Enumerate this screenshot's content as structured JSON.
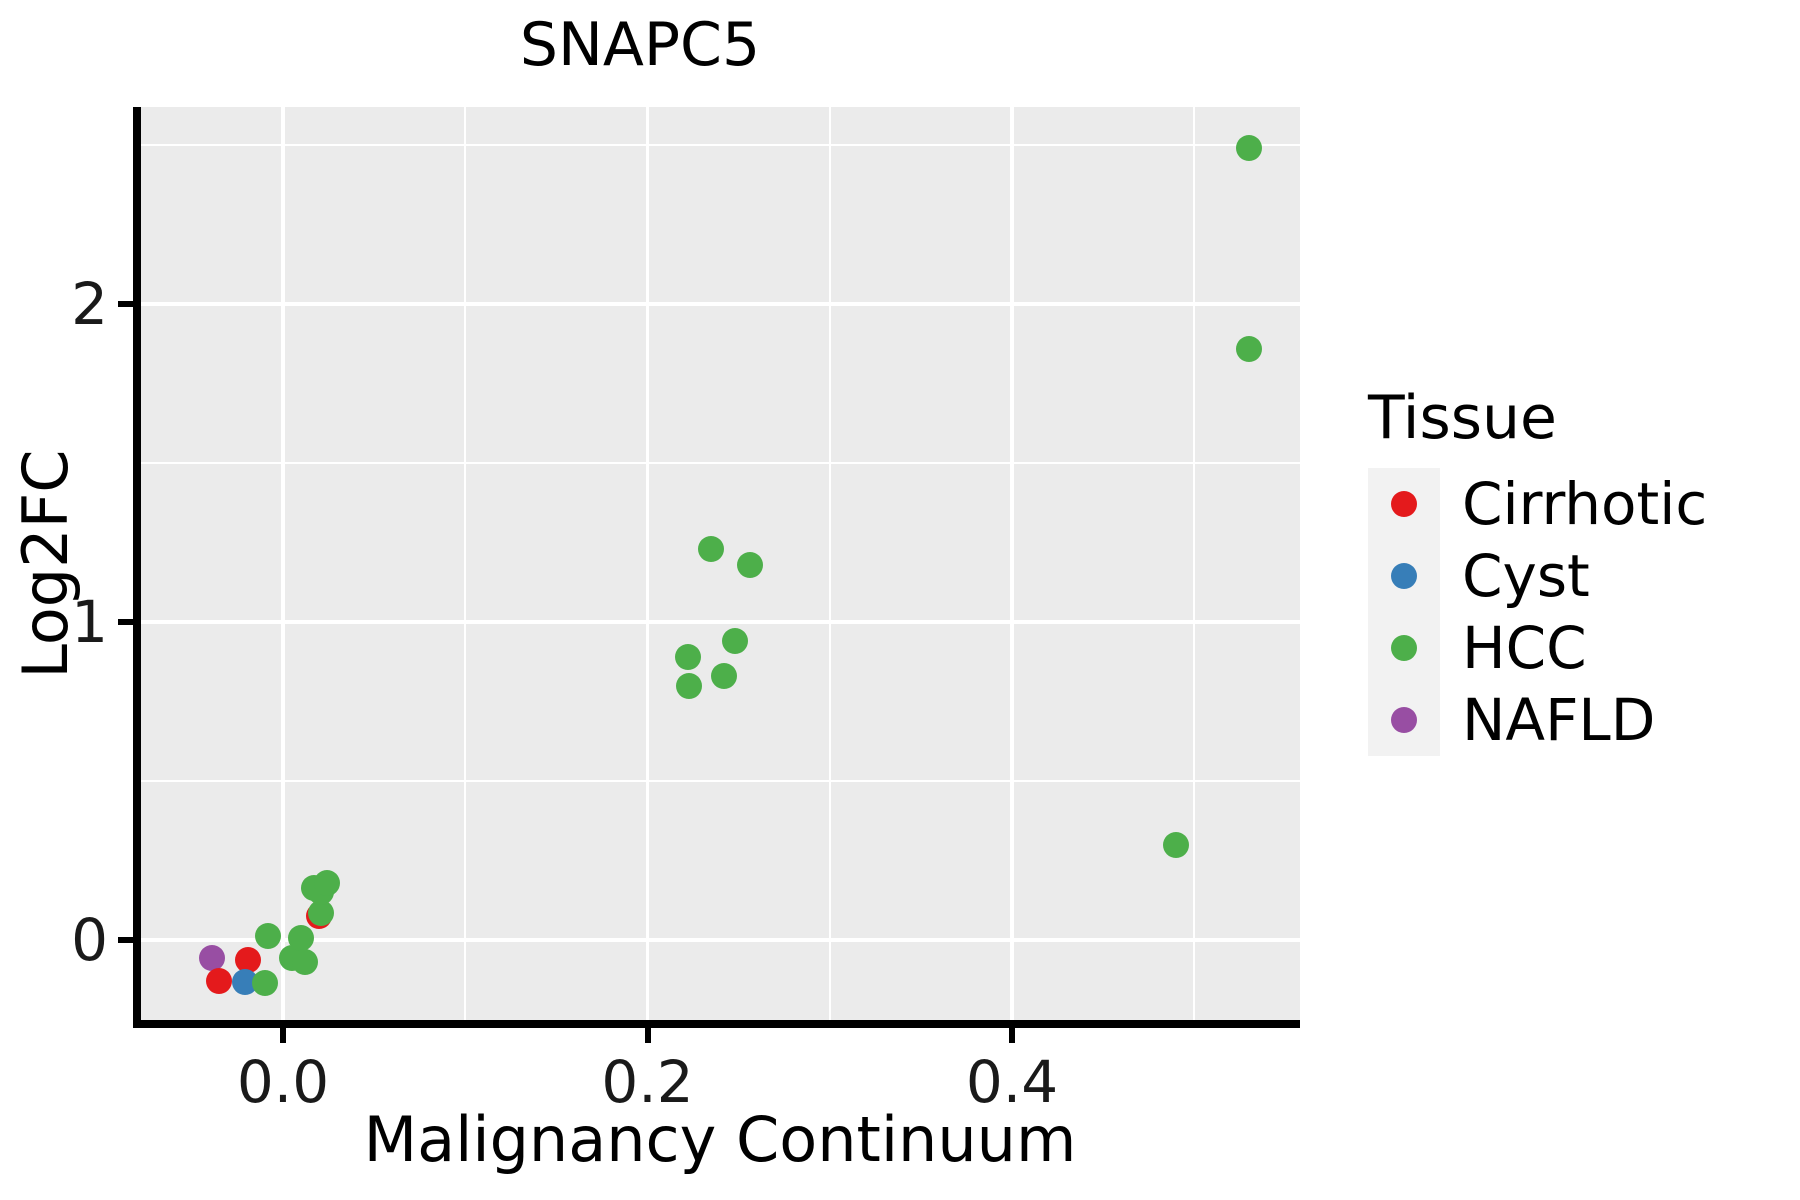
{
  "title": "SNAPC5",
  "axes": {
    "x": {
      "title": "Malignancy Continuum",
      "tick_labels": [
        "0.0",
        "0.2",
        "0.4"
      ]
    },
    "y": {
      "title": "Log2FC",
      "tick_labels": [
        "0",
        "1",
        "2"
      ]
    }
  },
  "legend": {
    "title": "Tissue",
    "items": [
      {
        "label": "Cirrhotic",
        "color": "#E41A1C"
      },
      {
        "label": "Cyst",
        "color": "#377EB8"
      },
      {
        "label": "HCC",
        "color": "#4DAF4A"
      },
      {
        "label": "NAFLD",
        "color": "#984EA3"
      }
    ]
  },
  "colors": {
    "panel_background": "#EBEBEB",
    "gridline": "#FFFFFF",
    "legend_key_background": "#F2F2F2",
    "axis_line": "#000000"
  },
  "chart_data": {
    "type": "scatter",
    "title": "SNAPC5",
    "xlabel": "Malignancy Continuum",
    "ylabel": "Log2FC",
    "xlim": [
      -0.078,
      0.558
    ],
    "ylim": [
      -0.26,
      2.62
    ],
    "x_major_ticks": [
      0.0,
      0.2,
      0.4
    ],
    "x_minor_gridlines": [
      0.1,
      0.3,
      0.5
    ],
    "y_major_ticks": [
      0,
      1,
      2
    ],
    "y_minor_gridlines": [
      0.5,
      1.5,
      2.5
    ],
    "grid": "on",
    "legend_position": "right",
    "series": [
      {
        "name": "NAFLD",
        "color": "#984EA3",
        "points": [
          [
            -0.039,
            -0.058
          ]
        ]
      },
      {
        "name": "Cirrhotic",
        "color": "#E41A1C",
        "points": [
          [
            -0.035,
            -0.129
          ],
          [
            -0.019,
            -0.063
          ],
          [
            0.02,
            0.075
          ]
        ]
      },
      {
        "name": "Cyst",
        "color": "#377EB8",
        "points": [
          [
            -0.021,
            -0.133
          ]
        ]
      },
      {
        "name": "HCC",
        "color": "#4DAF4A",
        "points": [
          [
            -0.01,
            -0.134
          ],
          [
            -0.008,
            0.013
          ],
          [
            0.005,
            -0.058
          ],
          [
            0.01,
            0.006
          ],
          [
            0.012,
            -0.068
          ],
          [
            0.017,
            0.163
          ],
          [
            0.021,
            0.085
          ],
          [
            0.021,
            0.152
          ],
          [
            0.024,
            0.178
          ],
          [
            0.222,
            0.89
          ],
          [
            0.223,
            0.8
          ],
          [
            0.235,
            1.23
          ],
          [
            0.242,
            0.83
          ],
          [
            0.248,
            0.94
          ],
          [
            0.256,
            1.18
          ],
          [
            0.49,
            0.3
          ],
          [
            0.53,
            1.86
          ],
          [
            0.53,
            2.49
          ]
        ]
      }
    ]
  }
}
